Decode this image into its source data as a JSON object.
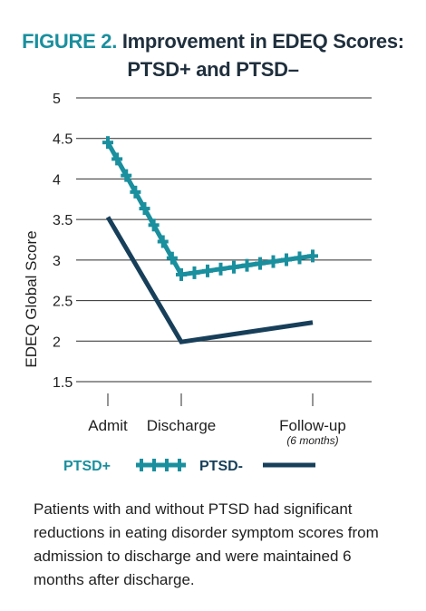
{
  "title": {
    "figure_label": "FIGURE 2.",
    "line1": "Improvement in EDEQ Scores:",
    "line2": "PTSD+ and PTSD–"
  },
  "caption": "Patients with and without PTSD had significant reductions in eating disorder symptom scores from admission to discharge and were maintained 6 months after discharge.",
  "colors": {
    "ptsd_plus": "#1a8f9e",
    "ptsd_minus": "#173f5a",
    "grid": "#2b2b2b",
    "figure_label": "#1a8f9e"
  },
  "chart_data": {
    "type": "line",
    "title": "Improvement in EDEQ Scores: PTSD+ and PTSD–",
    "ylabel": "EDEQ Global Score",
    "xlabel": "",
    "categories": [
      "Admit",
      "Discharge",
      "Follow-up"
    ],
    "category_sublabels": [
      "",
      "",
      "(6 months)"
    ],
    "yticks": [
      "5",
      "4.5",
      "4",
      "3.5",
      "3",
      "2.5",
      "2",
      "1.5"
    ],
    "ylim": [
      1.5,
      5
    ],
    "grid": true,
    "legend_position": "bottom",
    "series": [
      {
        "name": "PTSD+",
        "values": [
          4.45,
          2.82,
          3.05
        ],
        "marker": "cross"
      },
      {
        "name": "PTSD-",
        "values": [
          3.53,
          1.99,
          2.23
        ],
        "marker": "none"
      }
    ]
  }
}
